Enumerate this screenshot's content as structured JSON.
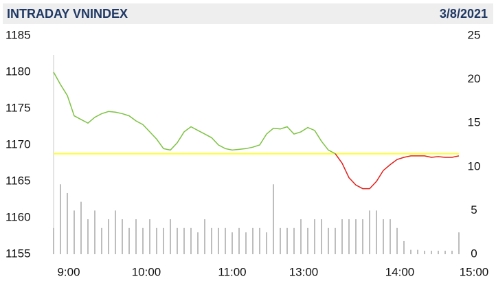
{
  "chart_data": {
    "type": "line",
    "title": "INTRADAY VNINDEX",
    "subtitle": "3/8/2021",
    "x": [
      0,
      1,
      2,
      3,
      4,
      5,
      6,
      7,
      8,
      9,
      10,
      11,
      12,
      13,
      14,
      15,
      16,
      17,
      18,
      19,
      20,
      21,
      22,
      23,
      24,
      25,
      26,
      27,
      28,
      29,
      30,
      31,
      32,
      33,
      34,
      35,
      36,
      37,
      38,
      39,
      40,
      41,
      42,
      43,
      44,
      45,
      46,
      47,
      48,
      49,
      50,
      51,
      52,
      53,
      54,
      55,
      56,
      57,
      58,
      59
    ],
    "xlim": [
      0,
      61.2
    ],
    "xticks": [
      {
        "value": 2.2,
        "label": "9:00"
      },
      {
        "value": 13.5,
        "label": "10:00"
      },
      {
        "value": 26,
        "label": "11:00"
      },
      {
        "value": 36.4,
        "label": "13:00"
      },
      {
        "value": 50.4,
        "label": "14:00"
      },
      {
        "value": 61.2,
        "label": "15:00"
      }
    ],
    "ylim": [
      1155,
      1185
    ],
    "yticks": [
      1155,
      1160,
      1165,
      1170,
      1175,
      1180,
      1185
    ],
    "y2lim": [
      0,
      25
    ],
    "y2ticks": [
      0,
      5,
      10,
      15,
      20,
      25
    ],
    "reference": {
      "value": 1168.8,
      "color": "#ffff33"
    },
    "series": [
      {
        "color": "#7dc242",
        "values": [
          1180,
          1178.3,
          1176.8,
          1174,
          1173.5,
          1173,
          1173.8,
          1174.3,
          1174.6,
          1174.5,
          1174.3,
          1174,
          1173.3,
          1172.8,
          1171.8,
          1170.8,
          1169.5,
          1169.3,
          1170.3,
          1171.8,
          1172.5,
          1172,
          1171.5,
          1171,
          1170,
          1169.5,
          1169.3,
          1169.4,
          1169.5,
          1169.7,
          1170,
          1171.5,
          1172.3,
          1172.2,
          1172.5,
          1171.5,
          1171.8,
          1172.4,
          1172,
          1170.5,
          1169.3,
          1168.8,
          null,
          null,
          null,
          null,
          null,
          null,
          null,
          null,
          null,
          null,
          null,
          null,
          null,
          null,
          null,
          null,
          null,
          null
        ]
      },
      {
        "color": "#e0201b",
        "values": [
          null,
          null,
          null,
          null,
          null,
          null,
          null,
          null,
          null,
          null,
          null,
          null,
          null,
          null,
          null,
          null,
          null,
          null,
          null,
          null,
          null,
          null,
          null,
          null,
          null,
          null,
          null,
          null,
          null,
          null,
          null,
          null,
          null,
          null,
          null,
          null,
          null,
          null,
          null,
          null,
          null,
          1168.8,
          1167.5,
          1165.5,
          1164.5,
          1164,
          1164,
          1165,
          1166.5,
          1167.3,
          1168,
          1168.3,
          1168.5,
          1168.5,
          1168.5,
          1168.3,
          1168.4,
          1168.3,
          1168.3,
          1168.5
        ]
      },
      {
        "axis": "y2",
        "type": "bar",
        "color": "#bdbdbd",
        "values": [
          3,
          8,
          7,
          5,
          6,
          4,
          5,
          3,
          4,
          5,
          4,
          3,
          4,
          3,
          4,
          3,
          3,
          4,
          3,
          3,
          3,
          2.5,
          4,
          3,
          3,
          3,
          2.5,
          3,
          2.5,
          3,
          3,
          2.5,
          8,
          3,
          3,
          3,
          4,
          3,
          4,
          4,
          3,
          3,
          4,
          4,
          4,
          4,
          5,
          5,
          4,
          4,
          3,
          1.5,
          0.5,
          0.5,
          0.4,
          0.4,
          0.4,
          0.4,
          0.4,
          2.5
        ]
      }
    ]
  }
}
